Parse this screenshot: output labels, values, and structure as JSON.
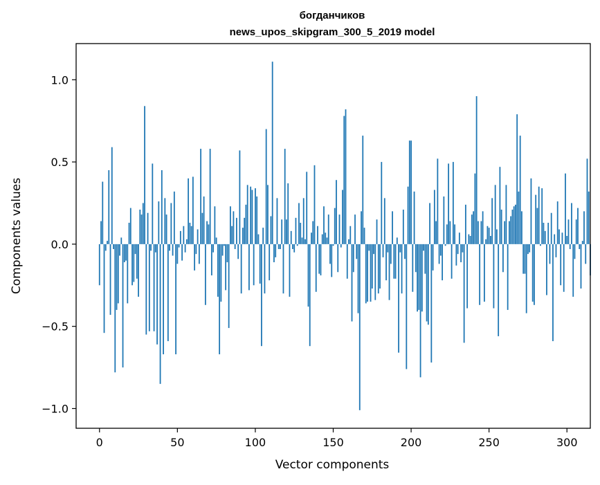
{
  "chart_data": {
    "type": "bar",
    "title_lines": [
      "богданчиков",
      "news_upos_skipgram_300_5_2019 model"
    ],
    "xlabel": "Vector components",
    "ylabel": "Components values",
    "xlim": [
      -15,
      315
    ],
    "ylim": [
      -1.12,
      1.22
    ],
    "x_ticks": [
      {
        "value": 0,
        "label": "0"
      },
      {
        "value": 50,
        "label": "50"
      },
      {
        "value": 100,
        "label": "100"
      },
      {
        "value": 150,
        "label": "150"
      },
      {
        "value": 200,
        "label": "200"
      },
      {
        "value": 250,
        "label": "250"
      },
      {
        "value": 300,
        "label": "300"
      }
    ],
    "y_ticks": [
      {
        "value": -1.0,
        "label": "−1.0"
      },
      {
        "value": -0.5,
        "label": "−0.5"
      },
      {
        "value": 0.0,
        "label": "0.0"
      },
      {
        "value": 0.5,
        "label": "0.5"
      },
      {
        "value": 1.0,
        "label": "1.0"
      }
    ],
    "grid": false,
    "bar_color": "#1f77b4",
    "values": [
      -0.25,
      0.14,
      0.38,
      -0.54,
      -0.04,
      0.02,
      0.45,
      -0.43,
      0.59,
      -0.03,
      -0.78,
      -0.4,
      -0.36,
      -0.07,
      0.04,
      -0.75,
      -0.11,
      -0.1,
      -0.36,
      0.13,
      0.22,
      -0.25,
      -0.23,
      -0.06,
      -0.21,
      -0.32,
      0.21,
      0.18,
      0.25,
      0.84,
      -0.55,
      0.19,
      -0.53,
      -0.04,
      0.49,
      -0.53,
      -0.05,
      -0.61,
      0.26,
      -0.85,
      0.45,
      -0.67,
      0.28,
      0.18,
      -0.59,
      -0.04,
      0.25,
      -0.07,
      0.32,
      -0.67,
      -0.12,
      -0.02,
      0.08,
      -0.1,
      0.11,
      -0.05,
      0.03,
      0.4,
      0.13,
      0.11,
      0.41,
      -0.16,
      -0.06,
      0.09,
      -0.12,
      0.58,
      0.19,
      0.29,
      -0.37,
      0.14,
      0.12,
      0.58,
      -0.19,
      -0.05,
      0.23,
      0.04,
      -0.32,
      -0.67,
      -0.35,
      -0.07,
      -0.01,
      -0.28,
      -0.11,
      -0.51,
      0.23,
      0.11,
      0.2,
      -0.03,
      0.16,
      -0.09,
      0.57,
      -0.3,
      0.1,
      0.16,
      0.24,
      0.36,
      -0.28,
      0.35,
      0.33,
      -0.25,
      0.34,
      0.29,
      0.06,
      -0.24,
      -0.62,
      0.1,
      -0.3,
      0.7,
      0.36,
      -0.22,
      0.17,
      1.11,
      -0.11,
      -0.08,
      0.28,
      -0.03,
      -0.03,
      0.15,
      -0.3,
      0.58,
      0.15,
      0.37,
      -0.32,
      0.08,
      -0.03,
      -0.05,
      0.16,
      -0.01,
      0.25,
      0.13,
      0.04,
      0.28,
      0.03,
      0.44,
      -0.38,
      -0.62,
      0.07,
      0.14,
      0.48,
      -0.29,
      0.11,
      -0.18,
      -0.19,
      0.06,
      0.23,
      0.07,
      0.04,
      0.18,
      -0.12,
      -0.2,
      -0.01,
      0.22,
      0.39,
      -0.17,
      0.18,
      -0.02,
      0.33,
      0.78,
      0.82,
      -0.21,
      0.03,
      0.11,
      -0.47,
      -0.17,
      0.18,
      -0.09,
      -0.42,
      -1.01,
      0.2,
      0.66,
      0.1,
      -0.36,
      -0.35,
      -0.04,
      -0.35,
      -0.27,
      -0.06,
      -0.34,
      0.15,
      -0.3,
      -0.27,
      0.5,
      -0.08,
      0.28,
      -0.22,
      -0.05,
      -0.34,
      -0.12,
      0.2,
      -0.21,
      -0.21,
      0.04,
      -0.66,
      -0.05,
      -0.3,
      0.21,
      -0.09,
      -0.76,
      0.35,
      0.63,
      0.63,
      -0.29,
      0.32,
      -0.17,
      -0.41,
      -0.4,
      -0.81,
      -0.41,
      -0.04,
      -0.18,
      -0.47,
      -0.49,
      0.25,
      -0.72,
      -0.16,
      0.33,
      0.14,
      0.52,
      -0.12,
      -0.07,
      -0.22,
      0.29,
      -0.01,
      0.12,
      0.49,
      0.14,
      -0.21,
      0.5,
      0.12,
      -0.13,
      -0.06,
      0.07,
      -0.11,
      -0.05,
      -0.6,
      0.24,
      -0.39,
      0.06,
      0.05,
      0.18,
      0.2,
      0.43,
      0.9,
      0.14,
      -0.37,
      0.14,
      0.2,
      -0.35,
      0.03,
      0.11,
      0.1,
      0.05,
      0.28,
      -0.39,
      0.36,
      0.09,
      -0.56,
      0.47,
      0.21,
      -0.17,
      0.14,
      0.36,
      -0.4,
      0.14,
      0.17,
      0.21,
      0.23,
      0.24,
      0.79,
      0.32,
      0.66,
      0.2,
      -0.18,
      -0.18,
      -0.42,
      -0.06,
      -0.05,
      0.4,
      -0.35,
      -0.37,
      0.3,
      0.22,
      0.35,
      -0.01,
      0.34,
      0.13,
      0.08,
      -0.31,
      0.13,
      -0.12,
      0.19,
      -0.59,
      0.06,
      -0.08,
      0.26,
      0.09,
      -0.25,
      0.07,
      -0.29,
      0.43,
      0.05,
      0.15,
      -0.03,
      0.25,
      -0.32,
      -0.09,
      0.15,
      0.22,
      -0.03,
      -0.27,
      0.02,
      0.2,
      -0.12,
      0.52,
      0.32,
      -0.19
    ]
  }
}
